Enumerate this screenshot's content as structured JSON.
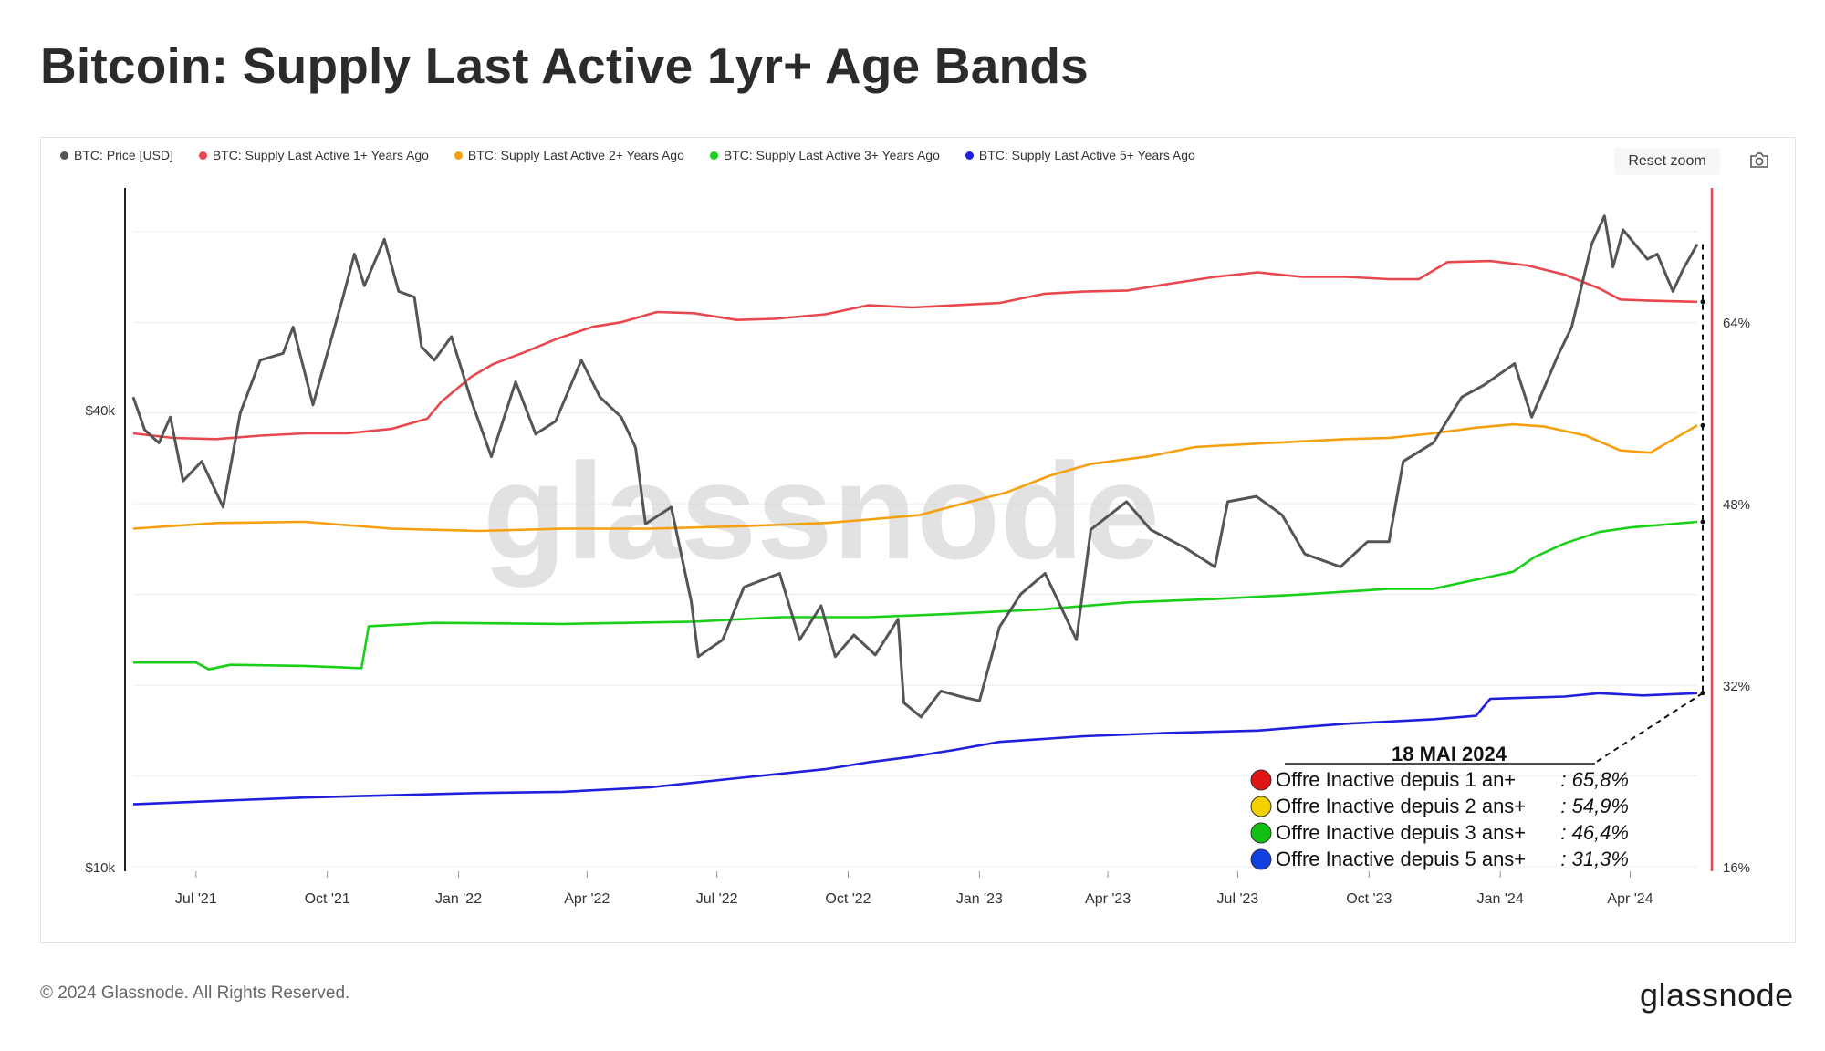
{
  "title": "Bitcoin: Supply Last Active 1yr+ Age Bands",
  "legend": [
    {
      "label": "BTC: Price [USD]",
      "color": "#555555"
    },
    {
      "label": "BTC: Supply Last Active 1+ Years Ago",
      "color": "#e8484d"
    },
    {
      "label": "BTC: Supply Last Active 2+ Years Ago",
      "color": "#f5a00e"
    },
    {
      "label": "BTC: Supply Last Active 3+ Years Ago",
      "color": "#19d019"
    },
    {
      "label": "BTC: Supply Last Active 5+ Years Ago",
      "color": "#1f1fdd"
    }
  ],
  "toolbar": {
    "reset_zoom": "Reset zoom"
  },
  "watermark": "glassnode",
  "footer": {
    "copyright": "© 2024 Glassnode. All Rights Reserved.",
    "brand": "glassnode"
  },
  "annotation": {
    "date": "18 MAI 2024",
    "rows": [
      {
        "label": "Offre Inactive depuis 1 an+",
        "value": ": 65,8%",
        "color": "#e01515"
      },
      {
        "label": "Offre Inactive depuis 2 ans+",
        "value": ": 54,9%",
        "color": "#f3d000"
      },
      {
        "label": "Offre Inactive depuis 3 ans+",
        "value": ": 46,4%",
        "color": "#11c011"
      },
      {
        "label": "Offre Inactive depuis 5 ans+",
        "value": ": 31,3%",
        "color": "#1040e0"
      }
    ]
  },
  "chart_data": {
    "type": "line",
    "title": "Bitcoin: Supply Last Active 1yr+ Age Bands",
    "x_ticks": [
      "Jul '21",
      "Oct '21",
      "Jan '22",
      "Apr '22",
      "Jul '22",
      "Oct '22",
      "Jan '23",
      "Apr '23",
      "Jul '23",
      "Oct '23",
      "Jan '24",
      "Apr '24"
    ],
    "x_range": [
      "2021-05-18",
      "2024-05-18"
    ],
    "y_left": {
      "scale": "log",
      "ticks": [
        "$10k",
        "$40k"
      ],
      "range_usd": [
        10000,
        80000
      ]
    },
    "y_right": {
      "unit": "%",
      "ticks": [
        "16%",
        "32%",
        "48%",
        "64%"
      ],
      "range": [
        16,
        76
      ]
    },
    "grid": true,
    "legend_position": "top-left",
    "series": [
      {
        "name": "BTC: Price [USD]",
        "axis": "left",
        "color": "#555555",
        "points": [
          [
            "2021-05-18",
            42000
          ],
          [
            "2021-05-26",
            38000
          ],
          [
            "2021-06-05",
            36500
          ],
          [
            "2021-06-13",
            39500
          ],
          [
            "2021-06-22",
            32500
          ],
          [
            "2021-07-05",
            34500
          ],
          [
            "2021-07-20",
            30000
          ],
          [
            "2021-08-01",
            40000
          ],
          [
            "2021-08-15",
            47000
          ],
          [
            "2021-08-31",
            48000
          ],
          [
            "2021-09-07",
            52000
          ],
          [
            "2021-09-21",
            41000
          ],
          [
            "2021-10-01",
            48000
          ],
          [
            "2021-10-12",
            57000
          ],
          [
            "2021-10-20",
            65000
          ],
          [
            "2021-10-27",
            59000
          ],
          [
            "2021-11-10",
            68000
          ],
          [
            "2021-11-20",
            58000
          ],
          [
            "2021-12-01",
            57000
          ],
          [
            "2021-12-06",
            49000
          ],
          [
            "2021-12-15",
            47000
          ],
          [
            "2021-12-27",
            50500
          ],
          [
            "2022-01-10",
            41500
          ],
          [
            "2022-01-24",
            35000
          ],
          [
            "2022-02-10",
            44000
          ],
          [
            "2022-02-24",
            37500
          ],
          [
            "2022-03-10",
            39000
          ],
          [
            "2022-03-28",
            47000
          ],
          [
            "2022-04-10",
            42000
          ],
          [
            "2022-04-25",
            39500
          ],
          [
            "2022-05-05",
            36000
          ],
          [
            "2022-05-12",
            28500
          ],
          [
            "2022-05-30",
            30000
          ],
          [
            "2022-06-13",
            22500
          ],
          [
            "2022-06-18",
            19000
          ],
          [
            "2022-07-05",
            20000
          ],
          [
            "2022-07-20",
            23500
          ],
          [
            "2022-08-14",
            24500
          ],
          [
            "2022-08-28",
            20000
          ],
          [
            "2022-09-12",
            22200
          ],
          [
            "2022-09-22",
            19000
          ],
          [
            "2022-10-05",
            20300
          ],
          [
            "2022-10-20",
            19100
          ],
          [
            "2022-11-05",
            21300
          ],
          [
            "2022-11-09",
            16500
          ],
          [
            "2022-11-21",
            15800
          ],
          [
            "2022-12-05",
            17100
          ],
          [
            "2022-12-20",
            16800
          ],
          [
            "2023-01-01",
            16600
          ],
          [
            "2023-01-15",
            20800
          ],
          [
            "2023-01-30",
            23000
          ],
          [
            "2023-02-16",
            24500
          ],
          [
            "2023-03-10",
            20000
          ],
          [
            "2023-03-20",
            28000
          ],
          [
            "2023-04-14",
            30500
          ],
          [
            "2023-05-01",
            28000
          ],
          [
            "2023-05-25",
            26500
          ],
          [
            "2023-06-15",
            25000
          ],
          [
            "2023-06-24",
            30500
          ],
          [
            "2023-07-14",
            31000
          ],
          [
            "2023-08-01",
            29300
          ],
          [
            "2023-08-17",
            26000
          ],
          [
            "2023-09-11",
            25000
          ],
          [
            "2023-09-30",
            27000
          ],
          [
            "2023-10-15",
            27000
          ],
          [
            "2023-10-25",
            34500
          ],
          [
            "2023-11-15",
            36500
          ],
          [
            "2023-12-05",
            42000
          ],
          [
            "2023-12-20",
            43500
          ],
          [
            "2024-01-11",
            46500
          ],
          [
            "2024-01-23",
            39500
          ],
          [
            "2024-02-10",
            47500
          ],
          [
            "2024-02-20",
            52000
          ],
          [
            "2024-03-05",
            67000
          ],
          [
            "2024-03-14",
            73000
          ],
          [
            "2024-03-20",
            62500
          ],
          [
            "2024-03-27",
            70000
          ],
          [
            "2024-04-13",
            64000
          ],
          [
            "2024-04-20",
            65000
          ],
          [
            "2024-05-01",
            58000
          ],
          [
            "2024-05-08",
            62000
          ],
          [
            "2024-05-18",
            67000
          ]
        ]
      },
      {
        "name": "BTC: Supply Last Active 1+ Years Ago",
        "axis": "right",
        "color": "#e8484d",
        "points": [
          [
            "2021-05-18",
            54.2
          ],
          [
            "2021-06-15",
            53.8
          ],
          [
            "2021-07-15",
            53.7
          ],
          [
            "2021-08-15",
            54.0
          ],
          [
            "2021-09-15",
            54.2
          ],
          [
            "2021-10-15",
            54.2
          ],
          [
            "2021-11-15",
            54.6
          ],
          [
            "2021-12-10",
            55.5
          ],
          [
            "2021-12-20",
            57.0
          ],
          [
            "2022-01-10",
            59.2
          ],
          [
            "2022-01-25",
            60.3
          ],
          [
            "2022-02-15",
            61.3
          ],
          [
            "2022-03-10",
            62.5
          ],
          [
            "2022-04-05",
            63.6
          ],
          [
            "2022-04-25",
            64.0
          ],
          [
            "2022-05-20",
            64.9
          ],
          [
            "2022-06-15",
            64.8
          ],
          [
            "2022-07-15",
            64.2
          ],
          [
            "2022-08-10",
            64.3
          ],
          [
            "2022-09-15",
            64.7
          ],
          [
            "2022-10-15",
            65.5
          ],
          [
            "2022-11-15",
            65.3
          ],
          [
            "2022-12-15",
            65.5
          ],
          [
            "2023-01-15",
            65.7
          ],
          [
            "2023-02-15",
            66.5
          ],
          [
            "2023-03-15",
            66.7
          ],
          [
            "2023-04-15",
            66.8
          ],
          [
            "2023-05-15",
            67.4
          ],
          [
            "2023-06-15",
            68.0
          ],
          [
            "2023-07-15",
            68.4
          ],
          [
            "2023-08-15",
            68.0
          ],
          [
            "2023-09-15",
            68.0
          ],
          [
            "2023-10-15",
            67.8
          ],
          [
            "2023-11-05",
            67.8
          ],
          [
            "2023-11-25",
            69.3
          ],
          [
            "2023-12-25",
            69.4
          ],
          [
            "2024-01-20",
            69.0
          ],
          [
            "2024-02-15",
            68.2
          ],
          [
            "2024-03-10",
            67.0
          ],
          [
            "2024-03-25",
            66.0
          ],
          [
            "2024-04-15",
            65.9
          ],
          [
            "2024-05-18",
            65.8
          ]
        ]
      },
      {
        "name": "BTC: Supply Last Active 2+ Years Ago",
        "axis": "right",
        "color": "#f5a00e",
        "points": [
          [
            "2021-05-18",
            45.8
          ],
          [
            "2021-07-15",
            46.3
          ],
          [
            "2021-09-15",
            46.4
          ],
          [
            "2021-11-15",
            45.8
          ],
          [
            "2022-01-15",
            45.6
          ],
          [
            "2022-03-15",
            45.8
          ],
          [
            "2022-05-15",
            45.8
          ],
          [
            "2022-07-15",
            46.0
          ],
          [
            "2022-09-15",
            46.3
          ],
          [
            "2022-10-15",
            46.6
          ],
          [
            "2022-11-20",
            47.0
          ],
          [
            "2022-12-20",
            48.0
          ],
          [
            "2023-01-20",
            49.0
          ],
          [
            "2023-02-20",
            50.5
          ],
          [
            "2023-03-20",
            51.5
          ],
          [
            "2023-05-01",
            52.2
          ],
          [
            "2023-06-01",
            53.0
          ],
          [
            "2023-07-15",
            53.3
          ],
          [
            "2023-08-15",
            53.5
          ],
          [
            "2023-09-15",
            53.7
          ],
          [
            "2023-10-15",
            53.8
          ],
          [
            "2023-11-15",
            54.2
          ],
          [
            "2023-12-15",
            54.7
          ],
          [
            "2024-01-10",
            55.0
          ],
          [
            "2024-02-01",
            54.8
          ],
          [
            "2024-03-01",
            54.0
          ],
          [
            "2024-03-25",
            52.7
          ],
          [
            "2024-04-15",
            52.5
          ],
          [
            "2024-05-18",
            54.9
          ]
        ]
      },
      {
        "name": "BTC: Supply Last Active 3+ Years Ago",
        "axis": "right",
        "color": "#19d019",
        "points": [
          [
            "2021-05-18",
            34.0
          ],
          [
            "2021-07-01",
            34.0
          ],
          [
            "2021-07-10",
            33.4
          ],
          [
            "2021-07-25",
            33.8
          ],
          [
            "2021-09-15",
            33.7
          ],
          [
            "2021-10-25",
            33.5
          ],
          [
            "2021-10-30",
            37.2
          ],
          [
            "2021-12-15",
            37.5
          ],
          [
            "2022-03-15",
            37.4
          ],
          [
            "2022-06-15",
            37.6
          ],
          [
            "2022-08-15",
            38.0
          ],
          [
            "2022-10-15",
            38.0
          ],
          [
            "2022-12-15",
            38.3
          ],
          [
            "2023-02-15",
            38.7
          ],
          [
            "2023-04-15",
            39.3
          ],
          [
            "2023-06-15",
            39.6
          ],
          [
            "2023-08-15",
            40.0
          ],
          [
            "2023-10-15",
            40.5
          ],
          [
            "2023-11-15",
            40.5
          ],
          [
            "2023-12-15",
            41.3
          ],
          [
            "2024-01-10",
            42.0
          ],
          [
            "2024-01-25",
            43.3
          ],
          [
            "2024-02-15",
            44.5
          ],
          [
            "2024-03-10",
            45.5
          ],
          [
            "2024-04-01",
            45.9
          ],
          [
            "2024-05-18",
            46.4
          ]
        ]
      },
      {
        "name": "BTC: Supply Last Active 5+ Years Ago",
        "axis": "right",
        "color": "#1f1fdd",
        "points": [
          [
            "2021-05-18",
            21.5
          ],
          [
            "2021-07-15",
            21.8
          ],
          [
            "2021-09-15",
            22.1
          ],
          [
            "2021-11-15",
            22.3
          ],
          [
            "2022-01-15",
            22.5
          ],
          [
            "2022-03-15",
            22.6
          ],
          [
            "2022-05-15",
            23.0
          ],
          [
            "2022-07-15",
            23.8
          ],
          [
            "2022-09-15",
            24.6
          ],
          [
            "2022-10-15",
            25.2
          ],
          [
            "2022-11-15",
            25.7
          ],
          [
            "2022-12-15",
            26.3
          ],
          [
            "2023-01-15",
            27.0
          ],
          [
            "2023-03-15",
            27.5
          ],
          [
            "2023-05-15",
            27.8
          ],
          [
            "2023-07-15",
            28.0
          ],
          [
            "2023-09-15",
            28.6
          ],
          [
            "2023-11-15",
            29.0
          ],
          [
            "2023-12-15",
            29.3
          ],
          [
            "2023-12-25",
            30.8
          ],
          [
            "2024-02-15",
            31.0
          ],
          [
            "2024-03-10",
            31.3
          ],
          [
            "2024-04-10",
            31.1
          ],
          [
            "2024-05-18",
            31.3
          ]
        ]
      }
    ]
  }
}
